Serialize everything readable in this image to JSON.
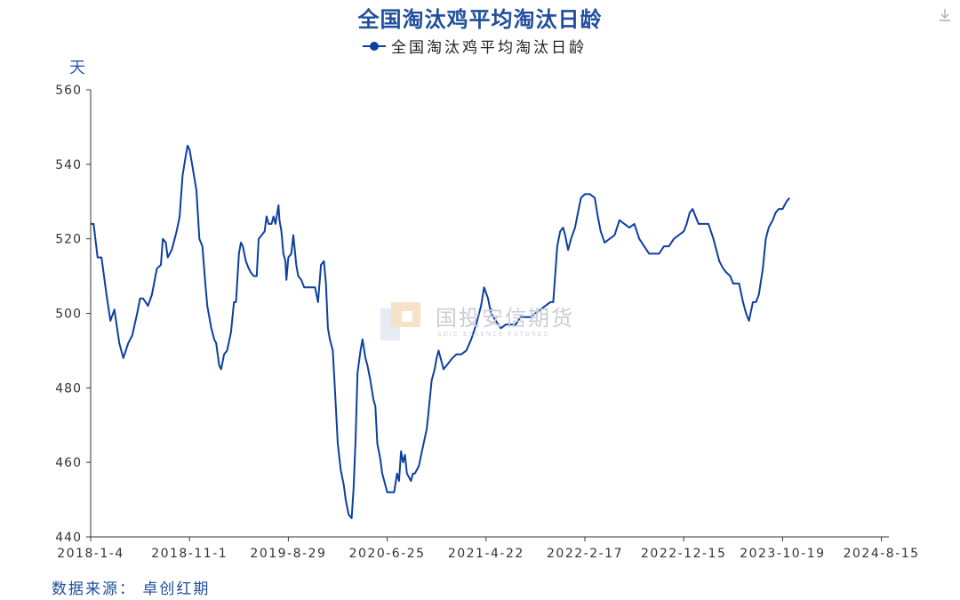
{
  "title": "全国淘汰鸡平均淘汰日龄",
  "legend_label": "全国淘汰鸡平均淘汰日龄",
  "source": "数据来源： 卓创红期",
  "watermark": {
    "name": "国投安信期货",
    "sub": "SDIC ESSENCE FUTURES"
  },
  "colors": {
    "line": "#0d3fa0",
    "title": "#1f4e9c",
    "axis": "#333333"
  },
  "chart_data": {
    "type": "line",
    "title": "全国淘汰鸡平均淘汰日龄",
    "ylabel": "天",
    "ylim": [
      440,
      560
    ],
    "yticks": [
      440,
      460,
      480,
      500,
      520,
      540,
      560
    ],
    "xticks": [
      "2018-1-4",
      "2018-11-1",
      "2019-8-29",
      "2020-6-25",
      "2021-4-22",
      "2022-2-17",
      "2022-12-15",
      "2023-10-19",
      "2024-8-15"
    ],
    "series": [
      {
        "name": "全国淘汰鸡平均淘汰日龄",
        "points": [
          [
            0,
            524
          ],
          [
            0.03,
            524
          ],
          [
            0.07,
            515
          ],
          [
            0.11,
            515
          ],
          [
            0.16,
            505
          ],
          [
            0.2,
            498
          ],
          [
            0.24,
            501
          ],
          [
            0.29,
            492
          ],
          [
            0.33,
            488
          ],
          [
            0.38,
            492
          ],
          [
            0.42,
            494
          ],
          [
            0.47,
            500
          ],
          [
            0.5,
            504
          ],
          [
            0.53,
            504
          ],
          [
            0.58,
            502
          ],
          [
            0.62,
            505
          ],
          [
            0.67,
            512
          ],
          [
            0.71,
            513
          ],
          [
            0.73,
            520
          ],
          [
            0.76,
            519
          ],
          [
            0.78,
            515
          ],
          [
            0.82,
            517
          ],
          [
            0.87,
            522
          ],
          [
            0.9,
            526
          ],
          [
            0.93,
            537
          ],
          [
            0.96,
            542
          ],
          [
            0.98,
            545
          ],
          [
            1.0,
            544
          ],
          [
            1.02,
            541
          ],
          [
            1.07,
            533
          ],
          [
            1.1,
            520
          ],
          [
            1.13,
            518
          ],
          [
            1.16,
            508
          ],
          [
            1.18,
            502
          ],
          [
            1.22,
            496
          ],
          [
            1.25,
            493
          ],
          [
            1.27,
            492
          ],
          [
            1.3,
            486
          ],
          [
            1.32,
            485
          ],
          [
            1.35,
            489
          ],
          [
            1.38,
            490
          ],
          [
            1.42,
            495
          ],
          [
            1.45,
            503
          ],
          [
            1.47,
            503
          ],
          [
            1.5,
            516
          ],
          [
            1.52,
            519
          ],
          [
            1.54,
            518
          ],
          [
            1.57,
            514
          ],
          [
            1.6,
            512
          ],
          [
            1.62,
            511
          ],
          [
            1.65,
            510
          ],
          [
            1.68,
            510
          ],
          [
            1.7,
            520
          ],
          [
            1.73,
            521
          ],
          [
            1.76,
            522
          ],
          [
            1.78,
            526
          ],
          [
            1.8,
            524
          ],
          [
            1.83,
            524
          ],
          [
            1.85,
            526
          ],
          [
            1.87,
            524
          ],
          [
            1.9,
            529
          ],
          [
            1.91,
            525
          ],
          [
            1.93,
            522
          ],
          [
            1.95,
            516
          ],
          [
            1.97,
            514
          ],
          [
            1.98,
            509
          ],
          [
            2.0,
            515
          ],
          [
            2.03,
            516
          ],
          [
            2.05,
            521
          ],
          [
            2.08,
            513
          ],
          [
            2.1,
            510
          ],
          [
            2.13,
            509
          ],
          [
            2.16,
            507
          ],
          [
            2.2,
            507
          ],
          [
            2.23,
            507
          ],
          [
            2.27,
            507
          ],
          [
            2.3,
            503
          ],
          [
            2.33,
            513
          ],
          [
            2.36,
            514
          ],
          [
            2.38,
            508
          ],
          [
            2.4,
            496
          ],
          [
            2.42,
            493
          ],
          [
            2.45,
            490
          ],
          [
            2.47,
            480
          ],
          [
            2.5,
            465
          ],
          [
            2.53,
            458
          ],
          [
            2.56,
            454
          ],
          [
            2.58,
            450
          ],
          [
            2.61,
            446
          ],
          [
            2.64,
            445
          ],
          [
            2.66,
            453
          ],
          [
            2.68,
            466
          ],
          [
            2.7,
            484
          ],
          [
            2.73,
            490
          ],
          [
            2.75,
            493
          ],
          [
            2.78,
            488
          ],
          [
            2.8,
            486
          ],
          [
            2.83,
            482
          ],
          [
            2.86,
            477
          ],
          [
            2.88,
            475
          ],
          [
            2.9,
            465
          ],
          [
            2.93,
            461
          ],
          [
            2.95,
            457
          ],
          [
            2.97,
            455
          ],
          [
            3.0,
            452
          ],
          [
            3.05,
            452
          ],
          [
            3.07,
            452
          ],
          [
            3.1,
            457
          ],
          [
            3.12,
            455
          ],
          [
            3.14,
            463
          ],
          [
            3.16,
            460
          ],
          [
            3.18,
            462
          ],
          [
            3.2,
            457
          ],
          [
            3.22,
            456
          ],
          [
            3.24,
            455
          ],
          [
            3.26,
            457
          ],
          [
            3.28,
            457
          ],
          [
            3.32,
            459
          ],
          [
            3.36,
            464
          ],
          [
            3.4,
            469
          ],
          [
            3.42,
            474
          ],
          [
            3.45,
            482
          ],
          [
            3.48,
            485
          ],
          [
            3.5,
            488
          ],
          [
            3.52,
            490
          ],
          [
            3.55,
            487
          ],
          [
            3.57,
            485
          ],
          [
            3.6,
            486
          ],
          [
            3.63,
            487
          ],
          [
            3.66,
            488
          ],
          [
            3.7,
            489
          ],
          [
            3.75,
            489
          ],
          [
            3.8,
            490
          ],
          [
            3.85,
            493
          ],
          [
            3.9,
            497
          ],
          [
            3.95,
            502
          ],
          [
            3.98,
            507
          ],
          [
            4.02,
            504
          ],
          [
            4.05,
            500
          ],
          [
            4.1,
            498
          ],
          [
            4.15,
            496
          ],
          [
            4.2,
            497
          ],
          [
            4.3,
            497
          ],
          [
            4.35,
            499
          ],
          [
            4.45,
            499
          ],
          [
            4.5,
            500
          ],
          [
            4.55,
            501
          ],
          [
            4.6,
            502
          ],
          [
            4.65,
            503
          ],
          [
            4.68,
            503
          ],
          [
            4.72,
            518
          ],
          [
            4.75,
            522
          ],
          [
            4.78,
            523
          ],
          [
            4.8,
            521
          ],
          [
            4.83,
            517
          ],
          [
            4.86,
            520
          ],
          [
            4.9,
            523
          ],
          [
            4.93,
            527
          ],
          [
            4.96,
            531
          ],
          [
            5.0,
            532
          ],
          [
            5.05,
            532
          ],
          [
            5.1,
            531
          ],
          [
            5.13,
            526
          ],
          [
            5.16,
            522
          ],
          [
            5.2,
            519
          ],
          [
            5.25,
            520
          ],
          [
            5.3,
            521
          ],
          [
            5.35,
            525
          ],
          [
            5.4,
            524
          ],
          [
            5.45,
            523
          ],
          [
            5.5,
            524
          ],
          [
            5.55,
            520
          ],
          [
            5.6,
            518
          ],
          [
            5.65,
            516
          ],
          [
            5.7,
            516
          ],
          [
            5.75,
            516
          ],
          [
            5.8,
            518
          ],
          [
            5.85,
            518
          ],
          [
            5.9,
            520
          ],
          [
            5.95,
            521
          ],
          [
            6.0,
            522
          ],
          [
            6.03,
            524
          ],
          [
            6.06,
            527
          ],
          [
            6.09,
            528
          ],
          [
            6.12,
            526
          ],
          [
            6.15,
            524
          ],
          [
            6.2,
            524
          ],
          [
            6.25,
            524
          ],
          [
            6.3,
            520
          ],
          [
            6.33,
            517
          ],
          [
            6.36,
            514
          ],
          [
            6.4,
            512
          ],
          [
            6.43,
            511
          ],
          [
            6.47,
            510
          ],
          [
            6.5,
            508
          ],
          [
            6.53,
            508
          ],
          [
            6.56,
            508
          ],
          [
            6.6,
            503
          ],
          [
            6.63,
            500
          ],
          [
            6.66,
            498
          ],
          [
            6.7,
            503
          ],
          [
            6.73,
            503
          ],
          [
            6.76,
            505
          ],
          [
            6.8,
            512
          ],
          [
            6.83,
            520
          ],
          [
            6.86,
            523
          ],
          [
            6.9,
            525
          ],
          [
            6.93,
            527
          ],
          [
            6.96,
            528
          ],
          [
            7.0,
            528
          ],
          [
            7.04,
            530
          ],
          [
            7.07,
            531
          ]
        ]
      }
    ]
  }
}
